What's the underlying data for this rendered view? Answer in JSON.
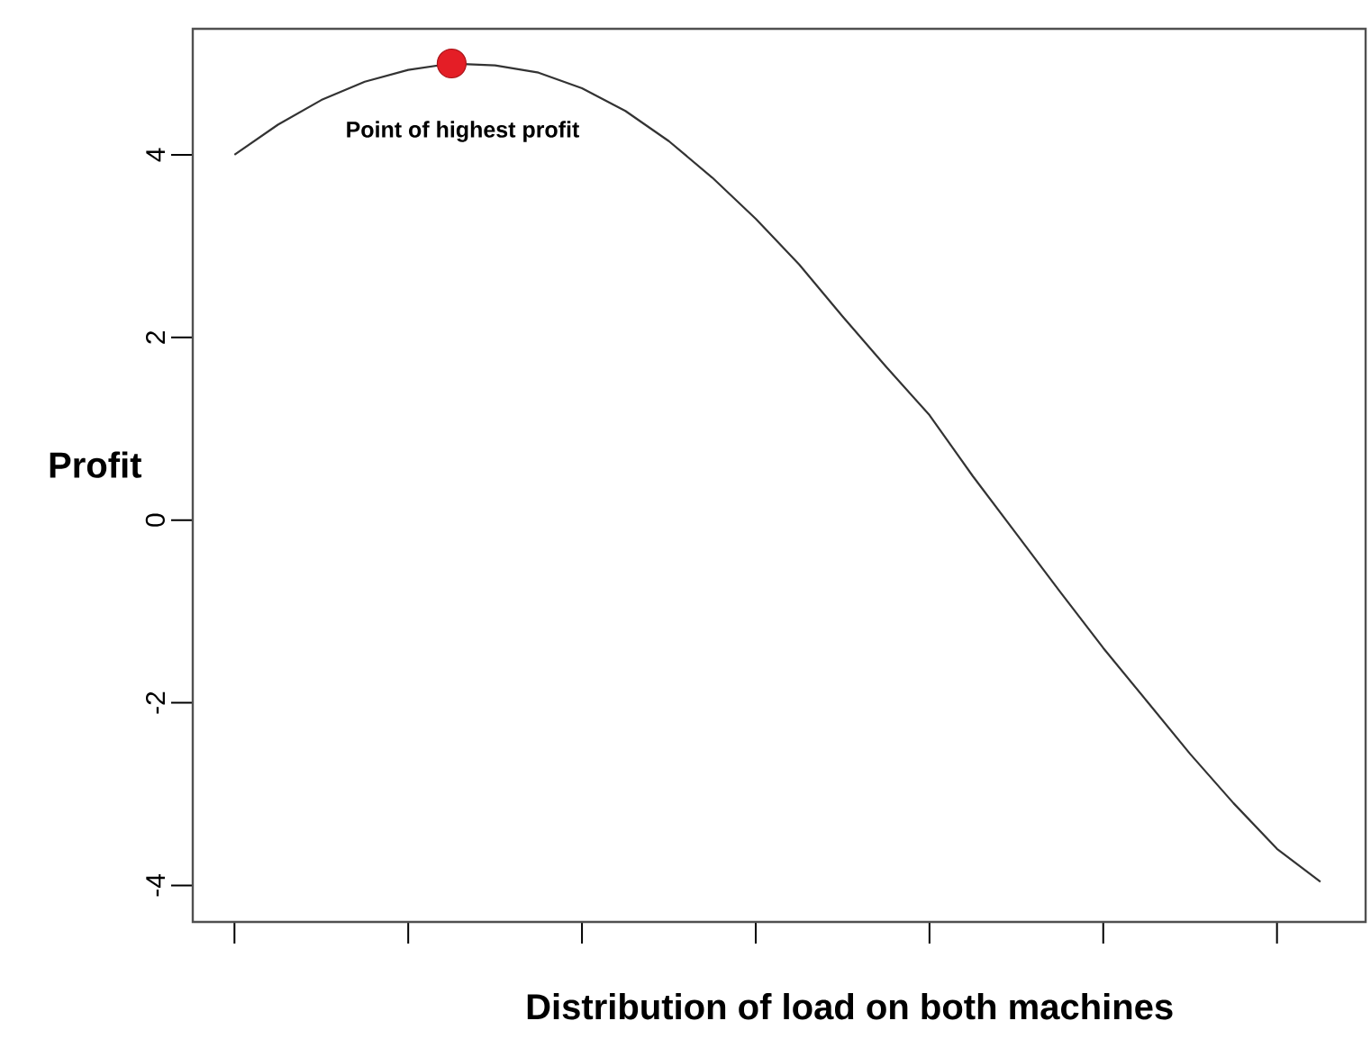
{
  "chart_data": {
    "type": "line",
    "xlabel": "Distribution of load on both machines",
    "ylabel": "Profit",
    "categories": [
      null,
      null,
      null,
      null,
      null,
      null,
      null,
      null,
      null,
      null,
      null,
      null,
      null,
      null,
      null,
      null,
      null,
      null,
      null,
      null,
      null,
      null,
      null,
      null,
      null,
      null
    ],
    "ylim": [
      -4.4,
      5.38
    ],
    "yticks": [
      -4,
      -2,
      0,
      2,
      4
    ],
    "tick_labels": "y",
    "series": [
      {
        "color": "#333333",
        "values": [
          4.0,
          4.33,
          4.6,
          4.8,
          4.93,
          5.0,
          4.98,
          4.9,
          4.73,
          4.48,
          4.15,
          3.75,
          3.3,
          2.8,
          2.23,
          1.68,
          1.15,
          0.48,
          -0.15,
          -0.78,
          -1.4,
          -1.98,
          -2.56,
          -3.1,
          -3.6,
          -3.96
        ]
      },
      {
        "type": "scatter",
        "color": "#e41e26",
        "marker": "circle",
        "values": [
          null,
          null,
          null,
          null,
          null,
          5.0,
          null,
          null,
          null,
          null,
          null,
          null,
          null,
          null,
          null,
          null,
          null,
          null,
          null,
          null,
          null,
          null,
          null,
          null,
          null,
          null
        ]
      }
    ],
    "annotations": [
      "Point of highest profit"
    ]
  }
}
